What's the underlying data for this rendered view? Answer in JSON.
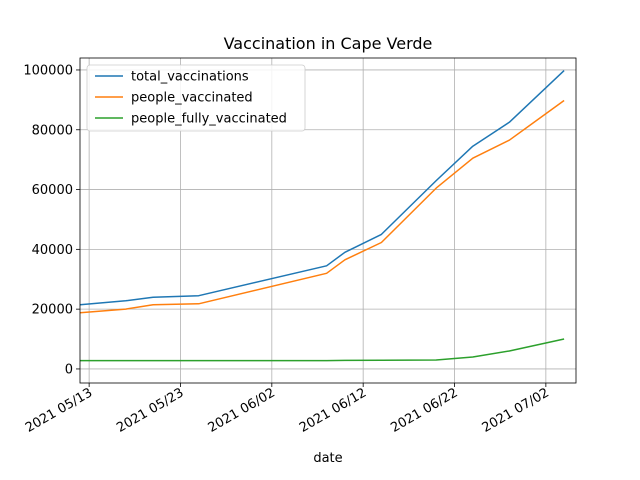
{
  "chart_data": {
    "type": "line",
    "title": "Vaccination in Cape Verde",
    "xlabel": "date",
    "ylabel": "",
    "x_tick_labels": [
      "2021 05/13",
      "2021 05/23",
      "2021 06/02",
      "2021 06/12",
      "2021 06/22",
      "2021 07/02"
    ],
    "x_tick_days": [
      0,
      10,
      20,
      30,
      40,
      50
    ],
    "xlim_days": [
      -1,
      53.3
    ],
    "y_ticks": [
      0,
      20000,
      40000,
      60000,
      80000,
      100000
    ],
    "y_tick_labels": [
      "0",
      "20000",
      "40000",
      "60000",
      "80000",
      "100000"
    ],
    "ylim": [
      -4700,
      104000
    ],
    "grid": true,
    "legend_position": "top-left",
    "x": [
      "2021-05-12",
      "2021-05-17",
      "2021-05-20",
      "2021-05-25",
      "2021-06-08",
      "2021-06-10",
      "2021-06-14",
      "2021-06-20",
      "2021-06-24",
      "2021-06-28",
      "2021-07-04"
    ],
    "series": [
      {
        "name": "total_vaccinations",
        "color": "#1f77b4",
        "values": [
          21500,
          22800,
          24000,
          24500,
          34500,
          39000,
          45000,
          63000,
          74500,
          82500,
          99800
        ]
      },
      {
        "name": "people_vaccinated",
        "color": "#ff7f0e",
        "values": [
          18800,
          20000,
          21500,
          21800,
          32000,
          36500,
          42300,
          60500,
          70500,
          76500,
          89800
        ]
      },
      {
        "name": "people_fully_vaccinated",
        "color": "#2ca02c",
        "values": [
          2800,
          2800,
          2800,
          2800,
          2800,
          2850,
          2900,
          3000,
          4000,
          6000,
          10000
        ]
      }
    ]
  }
}
